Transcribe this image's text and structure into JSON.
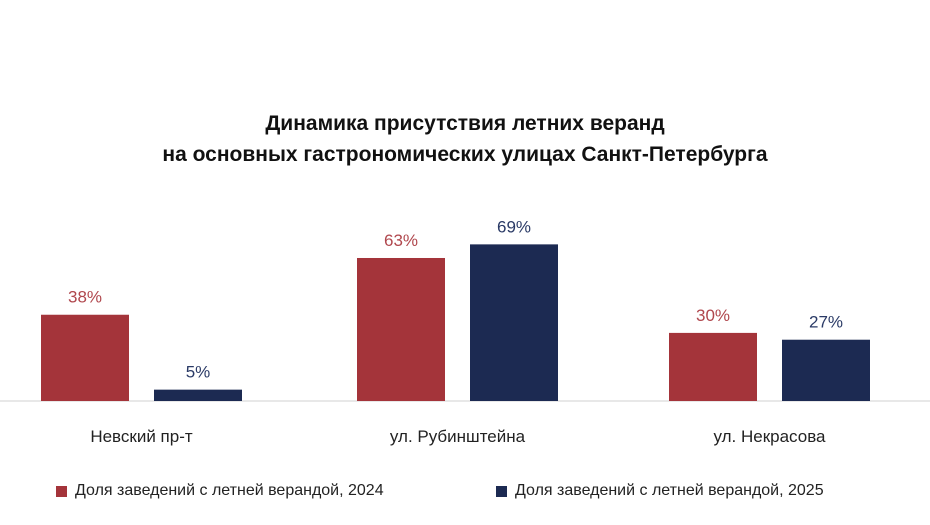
{
  "chart_data": {
    "type": "bar",
    "title_lines": [
      "Динамика присутствия летних веранд",
      "на основных гастрономических улицах Санкт-Петербурга"
    ],
    "categories": [
      "Невский пр-т",
      "ул. Рубинштейна",
      "ул. Некрасова"
    ],
    "series": [
      {
        "name": "Доля заведений  с летней верандой, 2024",
        "values": [
          38,
          63,
          30
        ],
        "labels": [
          "38%",
          "63%",
          "30%"
        ],
        "color": "#a4343a"
      },
      {
        "name": "Доля заведений  с летней верандой, 2025",
        "values": [
          5,
          69,
          27
        ],
        "labels": [
          "5%",
          "69%",
          "27%"
        ],
        "color": "#1c2a52"
      }
    ],
    "ylim": [
      0,
      100
    ],
    "grid": false,
    "legend_position": "bottom"
  }
}
